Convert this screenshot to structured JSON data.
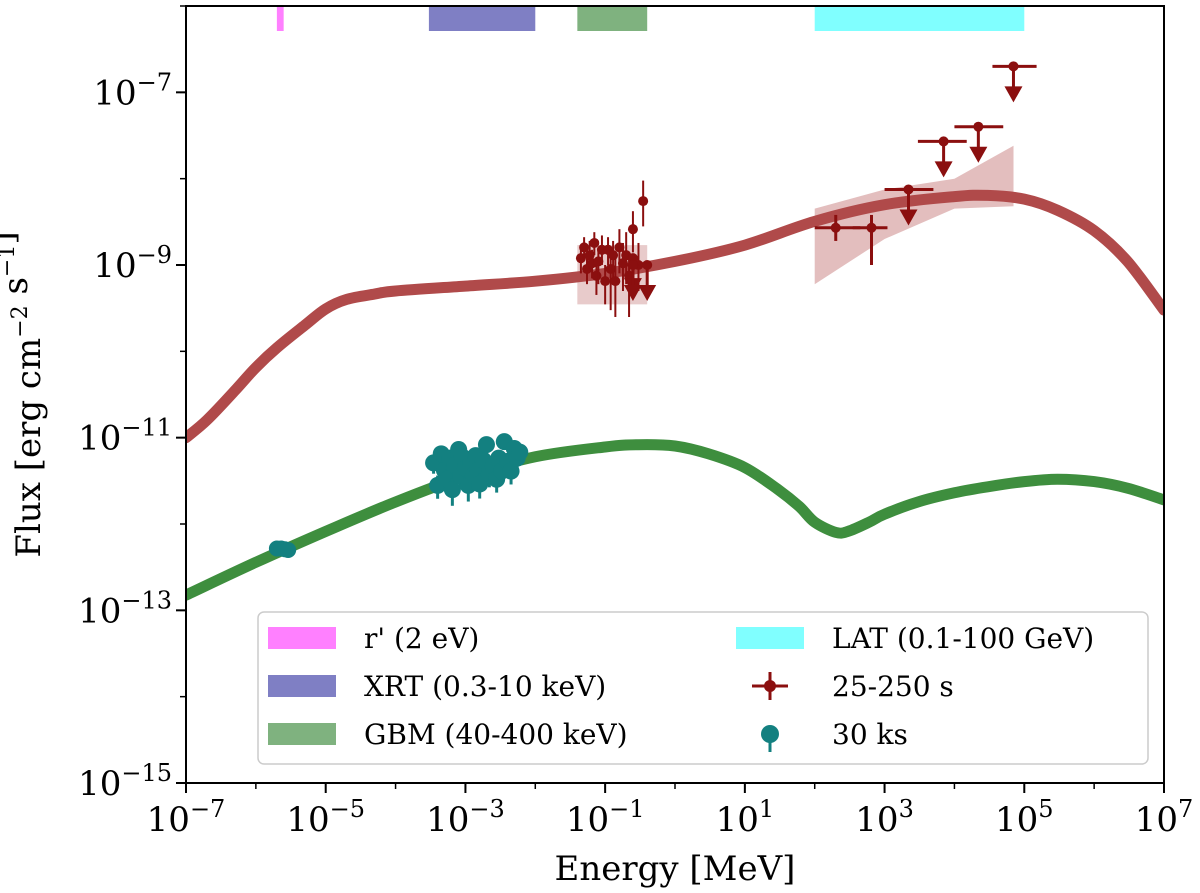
{
  "chart_data": {
    "type": "line",
    "x_scale": "log",
    "y_scale": "log",
    "xlabel": "Energy [MeV]",
    "ylabel": "Flux [erg cm^{-2} s^{-1}]",
    "xlim": [
      1e-07,
      10000000.0
    ],
    "ylim": [
      1e-15,
      1e-06
    ],
    "x_ticks": [
      {
        "value": 1e-07,
        "base": "10",
        "exp": "−7"
      },
      {
        "value": 1e-05,
        "base": "10",
        "exp": "−5"
      },
      {
        "value": 0.001,
        "base": "10",
        "exp": "−3"
      },
      {
        "value": 0.1,
        "base": "10",
        "exp": "−1"
      },
      {
        "value": 10.0,
        "base": "10",
        "exp": "1"
      },
      {
        "value": 1000.0,
        "base": "10",
        "exp": "3"
      },
      {
        "value": 100000.0,
        "base": "10",
        "exp": "5"
      },
      {
        "value": 10000000.0,
        "base": "10",
        "exp": "7"
      }
    ],
    "y_ticks": [
      {
        "value": 1e-15,
        "base": "10",
        "exp": "−15"
      },
      {
        "value": 1e-13,
        "base": "10",
        "exp": "−13"
      },
      {
        "value": 1e-11,
        "base": "10",
        "exp": "−11"
      },
      {
        "value": 1e-09,
        "base": "10",
        "exp": "−9"
      },
      {
        "value": 1e-07,
        "base": "10",
        "exp": "−7"
      }
    ],
    "bands": [
      {
        "name": "r' (2 eV)",
        "x": [
          2e-06,
          2.5e-06
        ],
        "color": "#ff80ff"
      },
      {
        "name": "XRT (0.3-10 keV)",
        "x": [
          0.0003,
          0.01
        ],
        "color": "#7f7fc4"
      },
      {
        "name": "GBM (40-400 keV)",
        "x": [
          0.04,
          0.4
        ],
        "color": "#7fb27f"
      },
      {
        "name": "LAT (0.1-100 GeV)",
        "x": [
          100,
          100000.0
        ],
        "color": "#80ffff"
      }
    ],
    "series": [
      {
        "name": "model 25-250 s",
        "color": "#b04a4a",
        "x": [
          1e-07,
          2e-07,
          5e-07,
          1e-06,
          2e-06,
          5e-06,
          1e-05,
          2e-05,
          5e-05,
          0.0001,
          0.001,
          0.01,
          0.1,
          1,
          10,
          100,
          1000.0,
          10000.0,
          30000.0,
          100000.0,
          300000.0,
          1000000.0,
          3000000.0,
          10000000.0
        ],
        "y": [
          1e-11,
          1.6e-11,
          3.5e-11,
          6.5e-11,
          1.1e-10,
          2e-10,
          3.1e-10,
          4e-10,
          4.6e-10,
          5e-10,
          5.7e-10,
          6.5e-10,
          8e-10,
          1.1e-09,
          1.7e-09,
          3.2e-09,
          5e-09,
          6.2e-09,
          6.4e-09,
          5.8e-09,
          4.3e-09,
          2.5e-09,
          1.1e-09,
          3e-10
        ]
      },
      {
        "name": "model 30 ks",
        "color": "#3e8e3e",
        "x": [
          1e-07,
          1e-06,
          1e-05,
          0.0001,
          0.001,
          0.01,
          0.1,
          0.3,
          1,
          3,
          10,
          30,
          60,
          100,
          200,
          300,
          600,
          1000.0,
          3000.0,
          10000.0,
          30000.0,
          100000.0,
          300000.0,
          1000000.0,
          3000000.0,
          10000000.0
        ],
        "y": [
          1.5e-13,
          3.6e-13,
          8.2e-13,
          1.8e-12,
          3.6e-12,
          6e-12,
          7.8e-12,
          8.3e-12,
          8e-12,
          6.5e-12,
          4.5e-12,
          2.5e-12,
          1.6e-12,
          1.05e-12,
          8e-13,
          8.2e-13,
          1.05e-12,
          1.3e-12,
          1.8e-12,
          2.3e-12,
          2.7e-12,
          3.1e-12,
          3.3e-12,
          3.1e-12,
          2.6e-12,
          1.9e-12
        ]
      }
    ],
    "lat_butterfly": {
      "color": "#d9a8a8",
      "x": [
        100,
        1000.0,
        10000.0,
        70000.0
      ],
      "upper": [
        4.5e-09,
        7.5e-09,
        1e-08,
        2.4e-08
      ],
      "lower": [
        6e-10,
        2e-09,
        4.5e-09,
        4.8e-09
      ]
    },
    "gbm_box": {
      "x": [
        0.04,
        0.4
      ],
      "y": [
        3.5e-10,
        1.7e-09
      ],
      "color": "#d9a8a8"
    },
    "points_25_250s": {
      "name": "25-250 s",
      "color": "#8b0f0f",
      "points": [
        {
          "x": 0.045,
          "y": 1.2e-09,
          "ylo": 8e-10,
          "yhi": 1.7e-09
        },
        {
          "x": 0.05,
          "y": 1.6e-09,
          "ylo": 1.2e-09,
          "yhi": 2.1e-09
        },
        {
          "x": 0.055,
          "y": 9e-10,
          "ylo": 6e-10,
          "yhi": 1.3e-09
        },
        {
          "x": 0.06,
          "y": 1.3e-09,
          "ylo": 9e-10,
          "yhi": 1.9e-09
        },
        {
          "x": 0.065,
          "y": 1.05e-09,
          "ylo": 7e-10,
          "yhi": 1.5e-09
        },
        {
          "x": 0.07,
          "y": 1.8e-09,
          "ylo": 1.3e-09,
          "yhi": 2.4e-09
        },
        {
          "x": 0.075,
          "y": 7.5e-10,
          "ylo": 4.5e-10,
          "yhi": 1.1e-09
        },
        {
          "x": 0.08,
          "y": 1.1e-09,
          "ylo": 6e-10,
          "yhi": 1.6e-09
        },
        {
          "x": 0.09,
          "y": 1.5e-09,
          "ylo": 1e-09,
          "yhi": 2.2e-09
        },
        {
          "x": 0.1,
          "y": 6.5e-10,
          "ylo": 3.5e-10,
          "yhi": 1e-09
        },
        {
          "x": 0.11,
          "y": 1.5e-09,
          "ylo": 1e-09,
          "yhi": 2.1e-09
        },
        {
          "x": 0.12,
          "y": 9e-10,
          "ylo": 3e-10,
          "yhi": 1.5e-09
        },
        {
          "x": 0.13,
          "y": 1.3e-09,
          "ylo": 7e-10,
          "yhi": 1.9e-09
        },
        {
          "x": 0.14,
          "y": 6.5e-10,
          "ylo": 2.5e-10,
          "yhi": 1.2e-09
        },
        {
          "x": 0.16,
          "y": 1.6e-09,
          "ylo": 8e-10,
          "yhi": 2.6e-09
        },
        {
          "x": 0.18,
          "y": 1.05e-09,
          "ylo": 5e-10,
          "yhi": 1.8e-09
        },
        {
          "x": 0.2,
          "y": 1.3e-09,
          "ylo": 6e-10,
          "yhi": 2.4e-09
        },
        {
          "x": 0.22,
          "y": 7.5e-10,
          "ylo": 2.5e-10,
          "yhi": 1.4e-09
        },
        {
          "x": 0.25,
          "y": 2.6e-09,
          "ylo": 1.4e-09,
          "yhi": 4.2e-09
        },
        {
          "x": 0.3,
          "y": 1e-09,
          "ylo": 5e-10,
          "yhi": 1.8e-09
        },
        {
          "x": 0.35,
          "y": 5.5e-09,
          "ylo": 2.8e-09,
          "yhi": 9.5e-09
        }
      ],
      "upper_limits": [
        {
          "x": 0.25,
          "y": 1.2e-09,
          "xlo": 0.2,
          "xhi": 0.3
        },
        {
          "x": 0.25,
          "y": 1e-09,
          "xlo": 0.2,
          "xhi": 0.3
        },
        {
          "x": 0.4,
          "y": 1e-09,
          "xlo": 0.33,
          "xhi": 0.45
        },
        {
          "x": 2200,
          "y": 7.5e-09,
          "xlo": 1000,
          "xhi": 5000
        },
        {
          "x": 7000,
          "y": 2.7e-08,
          "xlo": 3000,
          "xhi": 15000
        },
        {
          "x": 22000,
          "y": 4e-08,
          "xlo": 10000,
          "xhi": 50000
        },
        {
          "x": 70000,
          "y": 2e-07,
          "xlo": 35000,
          "xhi": 150000
        }
      ],
      "detections": [
        {
          "x": 200,
          "y": 2.7e-09,
          "xlo": 100,
          "xhi": 450,
          "ylo": 1.9e-09,
          "yhi": 3.8e-09
        },
        {
          "x": 650,
          "y": 2.7e-09,
          "xlo": 350,
          "xhi": 1100,
          "ylo": 1e-09,
          "yhi": 3.8e-09
        }
      ]
    },
    "points_30ks": {
      "name": "30 ks",
      "color": "#138080",
      "optical": [
        {
          "x": 2e-06,
          "y": 5.2e-13
        },
        {
          "x": 2.3e-06,
          "y": 5.2e-13
        },
        {
          "x": 2.6e-06,
          "y": 5.1e-13
        },
        {
          "x": 2.9e-06,
          "y": 5e-13
        }
      ],
      "xray": [
        {
          "x": 0.00035,
          "y": 5.1e-12,
          "e": 0.25
        },
        {
          "x": 0.0004,
          "y": 2.8e-12,
          "e": 0.3
        },
        {
          "x": 0.00045,
          "y": 6.5e-12,
          "e": 0.22
        },
        {
          "x": 0.0005,
          "y": 4.2e-12,
          "e": 0.25
        },
        {
          "x": 0.00055,
          "y": 3.3e-12,
          "e": 0.3
        },
        {
          "x": 0.0006,
          "y": 5.8e-12,
          "e": 0.22
        },
        {
          "x": 0.00065,
          "y": 2.5e-12,
          "e": 0.35
        },
        {
          "x": 0.0007,
          "y": 4.8e-12,
          "e": 0.25
        },
        {
          "x": 0.0008,
          "y": 7.3e-12,
          "e": 0.2
        },
        {
          "x": 0.00085,
          "y": 3.6e-12,
          "e": 0.3
        },
        {
          "x": 0.0009,
          "y": 6e-12,
          "e": 0.22
        },
        {
          "x": 0.001,
          "y": 4.4e-12,
          "e": 0.25
        },
        {
          "x": 0.0011,
          "y": 2.8e-12,
          "e": 0.35
        },
        {
          "x": 0.0012,
          "y": 5.2e-12,
          "e": 0.25
        },
        {
          "x": 0.0013,
          "y": 3.6e-12,
          "e": 0.3
        },
        {
          "x": 0.0014,
          "y": 6.2e-12,
          "e": 0.22
        },
        {
          "x": 0.0015,
          "y": 4.2e-12,
          "e": 0.25
        },
        {
          "x": 0.0016,
          "y": 2.9e-12,
          "e": 0.32
        },
        {
          "x": 0.0018,
          "y": 5.5e-12,
          "e": 0.25
        },
        {
          "x": 0.002,
          "y": 8.3e-12,
          "e": 0.2
        },
        {
          "x": 0.0022,
          "y": 3.8e-12,
          "e": 0.3
        },
        {
          "x": 0.0025,
          "y": 4.7e-12,
          "e": 0.25
        },
        {
          "x": 0.0028,
          "y": 3.3e-12,
          "e": 0.3
        },
        {
          "x": 0.003,
          "y": 5.8e-12,
          "e": 0.22
        },
        {
          "x": 0.0033,
          "y": 4.1e-12,
          "e": 0.25
        },
        {
          "x": 0.0036,
          "y": 9e-12,
          "e": 0.2
        },
        {
          "x": 0.004,
          "y": 5.3e-12,
          "e": 0.25
        },
        {
          "x": 0.0045,
          "y": 4.1e-12,
          "e": 0.3
        },
        {
          "x": 0.005,
          "y": 7.5e-12,
          "e": 0.2
        },
        {
          "x": 0.0055,
          "y": 5.8e-12,
          "e": 0.22
        },
        {
          "x": 0.006,
          "y": 6.8e-12,
          "e": 0.2
        }
      ]
    },
    "legend": {
      "position": "lower-right",
      "items": [
        {
          "label": "r' (2 eV)",
          "kind": "band",
          "color": "#ff80ff"
        },
        {
          "label": "LAT (0.1-100 GeV)",
          "kind": "band",
          "color": "#80ffff"
        },
        {
          "label": "XRT (0.3-10 keV)",
          "kind": "band",
          "color": "#7f7fc4"
        },
        {
          "label": "25-250 s",
          "kind": "errorbar",
          "color": "#8b0f0f"
        },
        {
          "label": "GBM (40-400 keV)",
          "kind": "band",
          "color": "#7fb27f"
        },
        {
          "label": "30 ks",
          "kind": "dot",
          "color": "#138080"
        }
      ]
    }
  }
}
